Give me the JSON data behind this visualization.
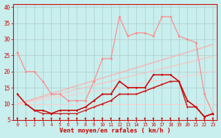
{
  "bg_color": "#c8eeed",
  "grid_color": "#b0c8c8",
  "xlabel": "Vent moyen/en rafales ( km/h )",
  "x_values": [
    0,
    1,
    2,
    3,
    4,
    5,
    6,
    7,
    8,
    9,
    10,
    11,
    12,
    13,
    14,
    15,
    16,
    17,
    18,
    19,
    20,
    21,
    22,
    23
  ],
  "ylim": [
    5,
    41
  ],
  "xlim": [
    -0.5,
    23.5
  ],
  "yticks": [
    5,
    10,
    15,
    20,
    25,
    30,
    35,
    40
  ],
  "ytick_labels": [
    "5",
    "10",
    "15",
    "20",
    "25",
    "30",
    "35",
    "40"
  ],
  "lines": [
    {
      "y": [
        26,
        20,
        20,
        17,
        13,
        13,
        11,
        11,
        11,
        17,
        24,
        24,
        37,
        31,
        32,
        32,
        31,
        37,
        37,
        31,
        30,
        29,
        13,
        7
      ],
      "color": "#ff8888",
      "lw": 0.9,
      "marker": "D",
      "ms": 2.0,
      "zorder": 3
    },
    {
      "y": [
        10,
        10.8,
        11.6,
        12.4,
        13.2,
        14.0,
        14.8,
        15.6,
        16.4,
        17.2,
        18.0,
        18.8,
        19.6,
        20.4,
        21.2,
        22.0,
        22.8,
        23.6,
        24.4,
        25.2,
        26.0,
        26.8,
        27.6,
        28.4
      ],
      "color": "#ffaaaa",
      "lw": 0.9,
      "marker": null,
      "ms": 0,
      "zorder": 2
    },
    {
      "y": [
        10,
        10.6,
        11.3,
        11.9,
        12.6,
        13.2,
        13.8,
        14.5,
        15.1,
        15.8,
        16.4,
        17.0,
        17.7,
        18.3,
        19.0,
        19.6,
        20.2,
        20.9,
        21.5,
        22.2,
        22.8,
        23.4,
        24.1,
        24.7
      ],
      "color": "#ffbbbb",
      "lw": 0.8,
      "marker": null,
      "ms": 0,
      "zorder": 2
    },
    {
      "y": [
        10,
        10.4,
        10.9,
        11.3,
        11.7,
        12.2,
        12.6,
        13.0,
        13.5,
        13.9,
        14.3,
        14.8,
        15.2,
        15.7,
        16.1,
        16.5,
        17.0,
        17.4,
        17.8,
        18.3,
        18.7,
        19.1,
        19.6,
        20.0
      ],
      "color": "#ffcccc",
      "lw": 0.8,
      "marker": null,
      "ms": 0,
      "zorder": 2
    },
    {
      "y": [
        10,
        10,
        10,
        10,
        10,
        10,
        10,
        10,
        10,
        10,
        10,
        10,
        10,
        10,
        10,
        10,
        10,
        10,
        10,
        10,
        10,
        10,
        10,
        10
      ],
      "color": "#ffcccc",
      "lw": 0.7,
      "marker": null,
      "ms": 0,
      "zorder": 2
    },
    {
      "y": [
        13,
        10,
        8,
        8,
        7,
        8,
        8,
        8,
        9,
        11,
        13,
        13,
        17,
        15,
        15,
        15,
        19,
        19,
        19,
        17,
        11,
        9,
        6,
        7
      ],
      "color": "#cc0000",
      "lw": 1.2,
      "marker": "D",
      "ms": 1.8,
      "zorder": 6
    },
    {
      "y": [
        null,
        10,
        8,
        7,
        7,
        7,
        7,
        7,
        8,
        9,
        10,
        11,
        13,
        13,
        13,
        14,
        15,
        16,
        17,
        17,
        9,
        9,
        6,
        7
      ],
      "color": "#cc2222",
      "lw": 1.0,
      "marker": "D",
      "ms": 1.6,
      "zorder": 5
    },
    {
      "y": [
        null,
        null,
        null,
        null,
        null,
        null,
        null,
        null,
        8,
        9,
        10,
        11,
        13,
        13,
        13,
        14,
        15,
        16,
        17,
        17,
        9,
        9,
        6,
        7
      ],
      "color": "#dd3333",
      "lw": 0.9,
      "marker": "D",
      "ms": 1.5,
      "zorder": 4
    },
    {
      "y": [
        null,
        null,
        null,
        null,
        null,
        null,
        null,
        null,
        null,
        null,
        10,
        11,
        13,
        13,
        13,
        14,
        15,
        16,
        17,
        null,
        9,
        null,
        6,
        7
      ],
      "color": "#ee5555",
      "lw": 0.9,
      "marker": "D",
      "ms": 1.5,
      "zorder": 3
    },
    {
      "y": [
        null,
        null,
        null,
        null,
        null,
        null,
        null,
        null,
        null,
        null,
        null,
        11,
        13,
        13,
        13,
        14,
        15,
        16,
        null,
        null,
        null,
        null,
        6,
        7
      ],
      "color": "#ff7777",
      "lw": 0.8,
      "marker": "D",
      "ms": 1.5,
      "zorder": 2
    }
  ],
  "arrow_color": "#cc0000",
  "tick_color": "#cc0000",
  "axis_label_color": "#cc0000",
  "spine_color": "#cc0000"
}
